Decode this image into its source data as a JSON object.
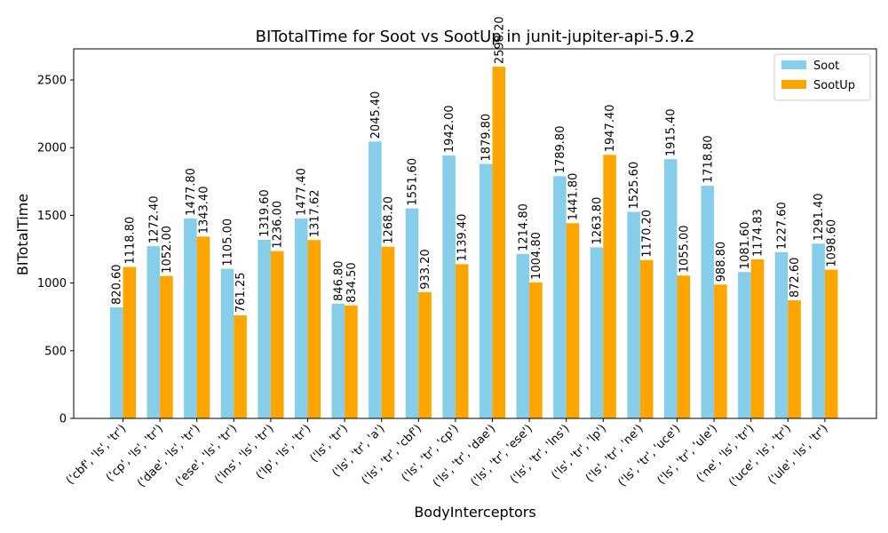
{
  "chart_data": {
    "type": "bar",
    "title": "BITotalTime for Soot vs SootUp in junit-jupiter-api-5.9.2",
    "xlabel": "BodyInterceptors",
    "ylabel": "BITotalTime",
    "ylim": [
      0,
      2730
    ],
    "yticks": [
      0,
      500,
      1000,
      1500,
      2000,
      2500
    ],
    "grid": false,
    "legend_position": "top-right",
    "categories": [
      "('cbf', 'ls', 'tr')",
      "('cp', 'ls', 'tr')",
      "('dae', 'ls', 'tr')",
      "('ese', 'ls', 'tr')",
      "('lns', 'ls', 'tr')",
      "('lp', 'ls', 'tr')",
      "('ls', 'tr')",
      "('ls', 'tr', 'a')",
      "('ls', 'tr', 'cbf')",
      "('ls', 'tr', 'cp')",
      "('ls', 'tr', 'dae')",
      "('ls', 'tr', 'ese')",
      "('ls', 'tr', 'lns')",
      "('ls', 'tr', 'lp')",
      "('ls', 'tr', 'ne')",
      "('ls', 'tr', 'uce')",
      "('ls', 'tr', 'ule')",
      "('ne', 'ls', 'tr')",
      "('uce', 'ls', 'tr')",
      "('ule', 'ls', 'tr')"
    ],
    "series": [
      {
        "name": "Soot",
        "color": "#87CEEB",
        "values": [
          820.6,
          1272.4,
          1477.8,
          1105.0,
          1319.6,
          1477.4,
          846.8,
          2045.4,
          1551.6,
          1942.0,
          1879.8,
          1214.8,
          1789.8,
          1263.8,
          1525.6,
          1915.4,
          1718.8,
          1081.6,
          1227.6,
          1291.4
        ],
        "labels": [
          "820.60",
          "1272.40",
          "1477.80",
          "1105.00",
          "1319.60",
          "1477.40",
          "846.80",
          "2045.40",
          "1551.60",
          "1942.00",
          "1879.80",
          "1214.80",
          "1789.80",
          "1263.80",
          "1525.60",
          "1915.40",
          "1718.80",
          "1081.60",
          "1227.60",
          "1291.40"
        ]
      },
      {
        "name": "SootUp",
        "color": "#FFA500",
        "values": [
          1118.8,
          1052.0,
          1343.4,
          761.25,
          1236.0,
          1317.62,
          834.5,
          1268.2,
          933.2,
          1139.4,
          2598.2,
          1004.8,
          1441.8,
          1947.4,
          1170.2,
          1055.0,
          988.8,
          1174.83,
          872.6,
          1098.6
        ],
        "labels": [
          "1118.80",
          "1052.00",
          "1343.40",
          "761.25",
          "1236.00",
          "1317.62",
          "834.50",
          "1268.20",
          "933.20",
          "1139.40",
          "2598.20",
          "1004.80",
          "1441.80",
          "1947.40",
          "1170.20",
          "1055.00",
          "988.80",
          "1174.83",
          "872.60",
          "1098.60"
        ]
      }
    ]
  }
}
